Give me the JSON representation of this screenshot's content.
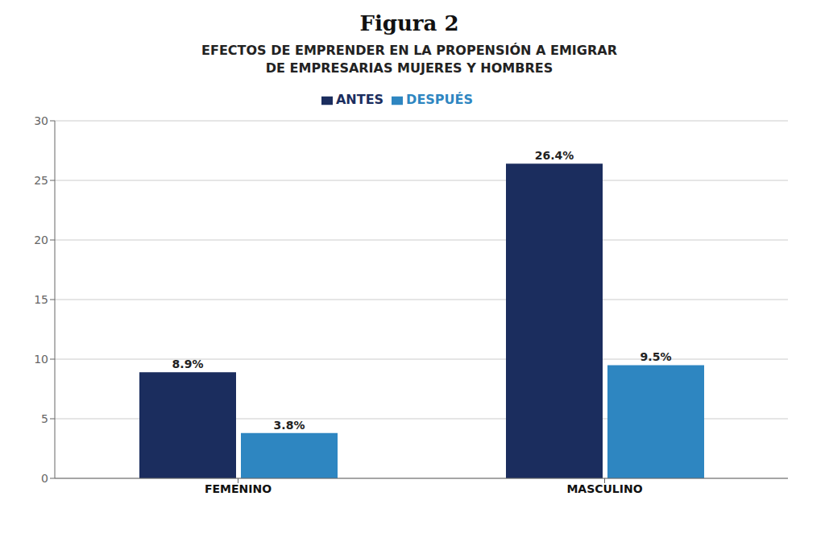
{
  "chart_data": {
    "type": "bar",
    "title": "Figura 2",
    "subtitle": [
      "EFECTOS DE EMPRENDER EN LA PROPENSIÓN A EMIGRAR",
      "DE EMPRESARIAS MUJERES Y HOMBRES"
    ],
    "categories": [
      "FEMENINO",
      "MASCULINO"
    ],
    "series": [
      {
        "name": "ANTES",
        "color": "#1b2d5e",
        "values": [
          8.9,
          26.4
        ],
        "value_labels": [
          "8.9%",
          "26.4%"
        ]
      },
      {
        "name": "DESPUÉS",
        "color": "#2e86c1",
        "values": [
          3.8,
          9.5
        ],
        "value_labels": [
          "3.8%",
          "9.5%"
        ]
      }
    ],
    "ylim": [
      0,
      30
    ],
    "yticks": [
      0,
      5,
      10,
      15,
      20,
      25,
      30
    ],
    "grid": true,
    "legend": "top",
    "data_labels": true
  }
}
